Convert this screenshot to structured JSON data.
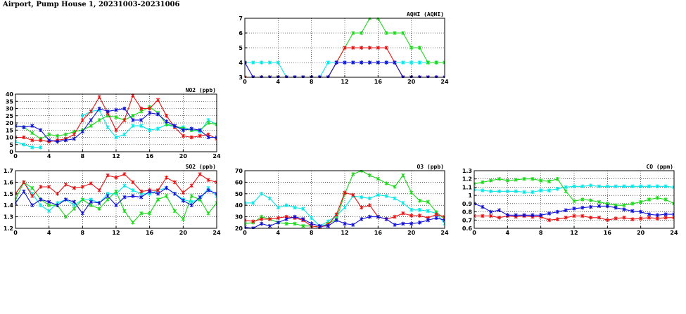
{
  "page_title": "Airport, Pump House 1, 20231003-20231006",
  "series_colors": [
    "#00e8e8",
    "#18d818",
    "#e81010",
    "#1010d8"
  ],
  "chart_data": [
    {
      "id": "aqhi",
      "type": "line",
      "title": "AQHI (AQHI)",
      "xlim": [
        0,
        24
      ],
      "ylim": [
        3,
        7
      ],
      "xticks": [
        0,
        4,
        8,
        12,
        16,
        20,
        24
      ],
      "yticks": [
        3,
        4,
        5,
        6,
        7
      ],
      "x": [
        0,
        1,
        2,
        3,
        4,
        5,
        6,
        7,
        8,
        9,
        10,
        11,
        12,
        13,
        14,
        15,
        16,
        17,
        18,
        19,
        20,
        21,
        22,
        23,
        24
      ],
      "series": [
        {
          "values": [
            4,
            4,
            4,
            4,
            4,
            3,
            3,
            3,
            3,
            3,
            4,
            4,
            4,
            4,
            4,
            4,
            4,
            4,
            4,
            4,
            4,
            4,
            4,
            4,
            4
          ]
        },
        {
          "values": [
            3,
            3,
            3,
            3,
            3,
            3,
            3,
            3,
            3,
            3,
            3,
            4,
            5,
            6,
            6,
            7,
            7,
            6,
            6,
            6,
            5,
            5,
            4,
            4,
            4
          ]
        },
        {
          "values": [
            3,
            3,
            3,
            3,
            3,
            3,
            3,
            3,
            3,
            3,
            3,
            4,
            5,
            5,
            5,
            5,
            5,
            5,
            4,
            3,
            3,
            3,
            3,
            3,
            3
          ]
        },
        {
          "values": [
            4,
            3,
            3,
            3,
            3,
            3,
            3,
            3,
            3,
            3,
            3,
            4,
            4,
            4,
            4,
            4,
            4,
            4,
            4,
            3,
            3,
            3,
            3,
            3,
            3
          ]
        }
      ]
    },
    {
      "id": "no2",
      "type": "line",
      "title": "NO2 (ppb)",
      "xlim": [
        0,
        24
      ],
      "ylim": [
        0,
        40
      ],
      "xticks": [
        0,
        4,
        8,
        12,
        16,
        20,
        24
      ],
      "yticks": [
        0,
        5,
        10,
        15,
        20,
        25,
        30,
        35,
        40
      ],
      "x": [
        0,
        1,
        2,
        3,
        4,
        5,
        6,
        7,
        8,
        9,
        10,
        11,
        12,
        13,
        14,
        15,
        16,
        17,
        18,
        19,
        20,
        21,
        22,
        23,
        24
      ],
      "series": [
        {
          "values": [
            7,
            5,
            3,
            3,
            null,
            null,
            null,
            null,
            25,
            28,
            29,
            17,
            10,
            12,
            18,
            18,
            15,
            16,
            19,
            17,
            17,
            15,
            14,
            22,
            19
          ]
        },
        {
          "values": [
            18,
            17,
            13,
            9,
            12,
            11,
            12,
            14,
            15,
            18,
            22,
            25,
            24,
            22,
            25,
            28,
            31,
            27,
            19,
            18,
            16,
            15,
            15,
            20,
            19
          ]
        },
        {
          "values": [
            10,
            10,
            8,
            8,
            7,
            8,
            9,
            12,
            22,
            28,
            38,
            27,
            15,
            22,
            39,
            30,
            30,
            36,
            25,
            17,
            11,
            10,
            11,
            12,
            9
          ]
        },
        {
          "values": [
            18,
            17,
            18,
            15,
            8,
            7,
            8,
            9,
            14,
            22,
            30,
            28,
            29,
            30,
            22,
            22,
            27,
            26,
            21,
            18,
            15,
            16,
            15,
            10,
            10
          ]
        }
      ]
    },
    {
      "id": "so2",
      "type": "line",
      "title": "SO2 (ppb)",
      "xlim": [
        0,
        24
      ],
      "ylim": [
        1.2,
        1.7
      ],
      "xticks": [
        0,
        4,
        8,
        12,
        16,
        20,
        24
      ],
      "yticks": [
        1.2,
        1.3,
        1.4,
        1.5,
        1.6,
        1.7
      ],
      "x": [
        0,
        1,
        2,
        3,
        4,
        5,
        6,
        7,
        8,
        9,
        10,
        11,
        12,
        13,
        14,
        15,
        16,
        17,
        18,
        19,
        20,
        21,
        22,
        23,
        24
      ],
      "series": [
        {
          "values": [
            1.5,
            1.6,
            1.5,
            1.4,
            1.35,
            1.42,
            1.45,
            1.4,
            1.45,
            1.45,
            1.42,
            1.5,
            1.5,
            1.57,
            1.53,
            1.5,
            1.5,
            1.53,
            1.55,
            1.5,
            1.45,
            1.43,
            1.45,
            1.55,
            1.48
          ]
        },
        {
          "values": [
            1.45,
            1.6,
            1.55,
            1.45,
            1.4,
            1.4,
            1.3,
            1.37,
            1.45,
            1.4,
            1.37,
            1.45,
            1.52,
            1.35,
            1.25,
            1.33,
            1.33,
            1.45,
            1.48,
            1.35,
            1.28,
            1.48,
            1.45,
            1.33,
            1.42
          ]
        },
        {
          "values": [
            1.5,
            1.6,
            1.48,
            1.56,
            1.56,
            1.5,
            1.58,
            1.55,
            1.56,
            1.59,
            1.53,
            1.66,
            1.64,
            1.67,
            1.6,
            1.52,
            1.53,
            1.53,
            1.64,
            1.6,
            1.51,
            1.57,
            1.67,
            1.62,
            1.6
          ]
        },
        {
          "values": [
            1.42,
            1.52,
            1.4,
            1.45,
            1.43,
            1.4,
            1.45,
            1.43,
            1.33,
            1.43,
            1.42,
            1.48,
            1.4,
            1.47,
            1.48,
            1.47,
            1.52,
            1.5,
            1.55,
            1.5,
            1.44,
            1.4,
            1.47,
            1.53,
            1.5
          ]
        }
      ]
    },
    {
      "id": "o3",
      "type": "line",
      "title": "O3 (ppb)",
      "xlim": [
        0,
        24
      ],
      "ylim": [
        20,
        70
      ],
      "xticks": [
        0,
        4,
        8,
        12,
        16,
        20,
        24
      ],
      "yticks": [
        20,
        30,
        40,
        50,
        60,
        70
      ],
      "x": [
        0,
        1,
        2,
        3,
        4,
        5,
        6,
        7,
        8,
        9,
        10,
        11,
        12,
        13,
        14,
        15,
        16,
        17,
        18,
        19,
        20,
        21,
        22,
        23,
        24
      ],
      "series": [
        {
          "values": [
            42,
            42,
            50,
            46,
            38,
            40,
            38,
            37,
            29,
            22,
            26,
            31,
            38,
            48,
            47,
            46,
            49,
            48,
            46,
            42,
            36,
            36,
            35,
            33,
            24
          ]
        },
        {
          "values": [
            24,
            25,
            30,
            28,
            25,
            24,
            24,
            22,
            22,
            21,
            24,
            28,
            50,
            67,
            70,
            66,
            63,
            59,
            56,
            66,
            51,
            44,
            43,
            34,
            28
          ]
        },
        {
          "values": [
            27,
            26,
            28,
            28,
            29,
            30,
            29,
            27,
            22,
            21,
            23,
            32,
            51,
            49,
            38,
            40,
            30,
            28,
            30,
            33,
            31,
            31,
            29,
            32,
            30
          ]
        },
        {
          "values": [
            21,
            20,
            24,
            22,
            25,
            28,
            30,
            28,
            24,
            22,
            22,
            27,
            24,
            23,
            28,
            30,
            30,
            28,
            23,
            24,
            24,
            25,
            27,
            29,
            27
          ]
        }
      ]
    },
    {
      "id": "co",
      "type": "line",
      "title": "CO (ppm)",
      "xlim": [
        0,
        24
      ],
      "ylim": [
        0.6,
        1.3
      ],
      "xticks": [
        0,
        4,
        8,
        12,
        16,
        20,
        24
      ],
      "yticks": [
        0.6,
        0.7,
        0.8,
        0.9,
        1.0,
        1.1,
        1.2,
        1.3
      ],
      "x": [
        0,
        1,
        2,
        3,
        4,
        5,
        6,
        7,
        8,
        9,
        10,
        11,
        12,
        13,
        14,
        15,
        16,
        17,
        18,
        19,
        20,
        21,
        22,
        23,
        24
      ],
      "series": [
        {
          "values": [
            1.07,
            1.06,
            1.05,
            1.05,
            1.05,
            1.05,
            1.04,
            1.04,
            1.06,
            1.06,
            1.08,
            1.1,
            1.11,
            1.11,
            1.12,
            1.11,
            1.11,
            1.11,
            1.11,
            1.11,
            1.11,
            1.11,
            1.11,
            1.11,
            1.1
          ]
        },
        {
          "values": [
            1.14,
            1.16,
            1.18,
            1.2,
            1.18,
            1.19,
            1.2,
            1.2,
            1.18,
            1.17,
            1.2,
            1.05,
            0.93,
            0.95,
            0.94,
            0.92,
            0.9,
            0.88,
            0.88,
            0.9,
            0.92,
            0.95,
            0.97,
            0.95,
            0.9
          ]
        },
        {
          "values": [
            0.75,
            0.75,
            0.75,
            0.73,
            0.75,
            0.74,
            0.75,
            0.74,
            0.74,
            0.7,
            0.71,
            0.73,
            0.75,
            0.75,
            0.73,
            0.73,
            0.7,
            0.72,
            0.73,
            0.71,
            0.72,
            0.73,
            0.72,
            0.73,
            0.73
          ]
        },
        {
          "values": [
            0.9,
            0.86,
            0.8,
            0.82,
            0.76,
            0.76,
            0.76,
            0.76,
            0.76,
            0.78,
            0.8,
            0.82,
            0.84,
            0.85,
            0.86,
            0.87,
            0.87,
            0.85,
            0.83,
            0.81,
            0.8,
            0.77,
            0.76,
            0.77,
            0.77
          ]
        }
      ]
    }
  ]
}
